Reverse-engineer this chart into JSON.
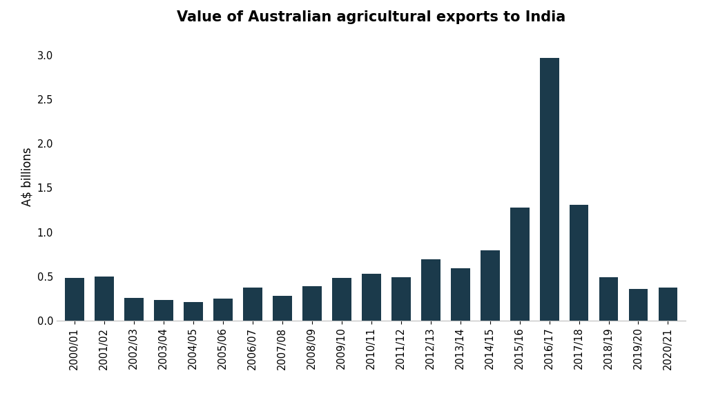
{
  "title": "Value of Australian agricultural exports to India",
  "ylabel": "A$ billions",
  "bar_color": "#1b3a4b",
  "categories": [
    "2000/01",
    "2001/02",
    "2002/03",
    "2003/04",
    "2004/05",
    "2005/06",
    "2006/07",
    "2007/08",
    "2008/09",
    "2009/10",
    "2010/11",
    "2011/12",
    "2012/13",
    "2013/14",
    "2014/15",
    "2015/16",
    "2016/17",
    "2017/18",
    "2018/19",
    "2019/20",
    "2020/21"
  ],
  "values": [
    0.48,
    0.5,
    0.26,
    0.23,
    0.21,
    0.25,
    0.37,
    0.28,
    0.39,
    0.48,
    0.53,
    0.49,
    0.69,
    0.59,
    0.79,
    1.28,
    2.97,
    1.31,
    0.49,
    0.36,
    0.375
  ],
  "ylim": [
    0,
    3.25
  ],
  "yticks": [
    0.0,
    0.5,
    1.0,
    1.5,
    2.0,
    2.5,
    3.0
  ],
  "background_color": "#ffffff",
  "title_fontsize": 15,
  "ylabel_fontsize": 12,
  "tick_fontsize": 10.5
}
